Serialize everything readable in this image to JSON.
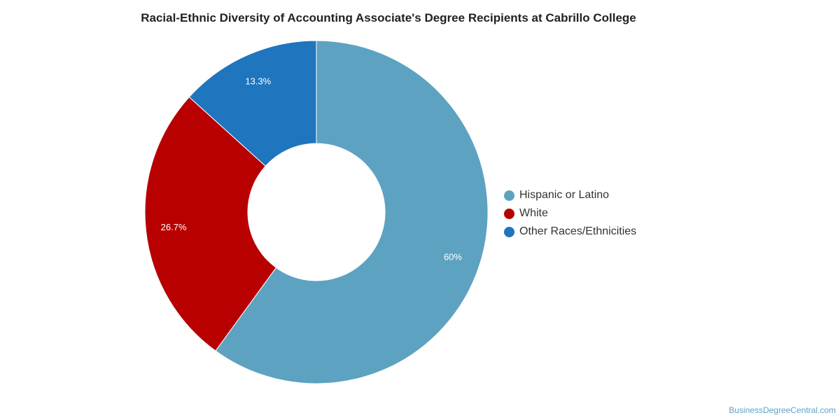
{
  "chart_data": {
    "type": "pie",
    "title": "Racial-Ethnic Diversity of Accounting Associate's Degree Recipients at Cabrillo College",
    "categories": [
      "Hispanic or Latino",
      "White",
      "Other Races/Ethnicities"
    ],
    "values": [
      60,
      26.7,
      13.3
    ],
    "labels": [
      "60%",
      "26.7%",
      "13.3%"
    ],
    "colors": [
      "#5ea2c1",
      "#b80000",
      "#1f75be"
    ],
    "donut": true,
    "legend_position": "right"
  },
  "watermark": "BusinessDegreeCentral.com"
}
